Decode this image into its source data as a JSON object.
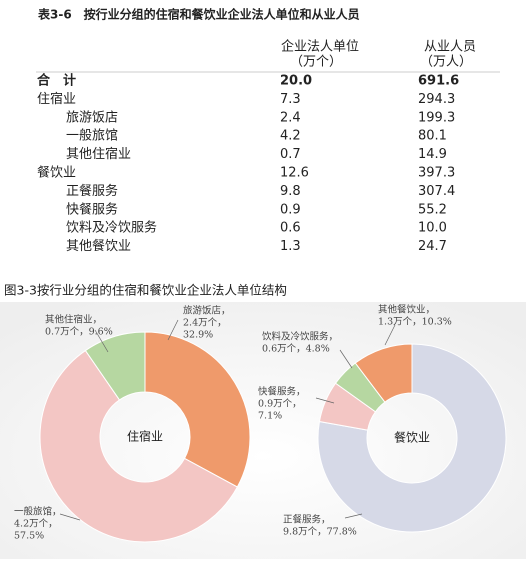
{
  "table": {
    "title": "表3-6　按行业分组的住宿和餐饮业企业法人单位和从业人员",
    "columns": [
      [
        "企业法人单位",
        "（万个）"
      ],
      [
        "从业人员",
        "（万人）"
      ]
    ],
    "total": [
      "合　计",
      "20.0",
      "691.6"
    ],
    "groups": [
      {
        "row": [
          "住宿业",
          "7.3",
          "294.3"
        ],
        "children": [
          [
            "旅游饭店",
            "2.4",
            "199.3"
          ],
          [
            "一般旅馆",
            "4.2",
            "80.1"
          ],
          [
            "其他住宿业",
            "0.7",
            "14.9"
          ]
        ]
      },
      {
        "row": [
          "餐饮业",
          "12.6",
          "397.3"
        ],
        "children": [
          [
            "正餐服务",
            "9.8",
            "307.4"
          ],
          [
            "快餐服务",
            "0.9",
            "55.2"
          ],
          [
            "饮料及冷饮服务",
            "0.6",
            "10.0"
          ],
          [
            "其他餐饮业",
            "1.3",
            "24.7"
          ]
        ]
      }
    ]
  },
  "figure": {
    "title": "图3-3按行业分组的住宿和餐饮业企业法人单位结构",
    "charts": [
      {
        "type": "pie",
        "center_label": "住宿业",
        "segments": [
          {
            "label": [
              "旅游饭店，",
              "2.4万个，",
              "32.9%"
            ],
            "value": 32.9,
            "color": "#ef9a6b"
          },
          {
            "label": [
              "一般旅馆，",
              "4.2万个，",
              "57.5%"
            ],
            "value": 57.5,
            "color": "#f3c6c4"
          },
          {
            "label": [
              "其他住宿业，",
              "0.7万个，9.6%"
            ],
            "value": 9.6,
            "color": "#b6d7a1"
          }
        ]
      },
      {
        "type": "pie",
        "center_label": "餐饮业",
        "segments": [
          {
            "label": [
              "正餐服务，",
              "9.8万个，77.8%"
            ],
            "value": 77.8,
            "color": "#d6d9e7"
          },
          {
            "label": [
              "快餐服务，",
              "0.9万个，",
              "7.1%"
            ],
            "value": 7.1,
            "color": "#f3c6c4"
          },
          {
            "label": [
              "饮料及冷饮服务，",
              "0.6万个，4.8%"
            ],
            "value": 4.8,
            "color": "#b6d7a1"
          },
          {
            "label": [
              "其他餐饮业，",
              "1.3万个，10.3%"
            ],
            "value": 10.3,
            "color": "#ef9a6b"
          }
        ]
      }
    ]
  }
}
